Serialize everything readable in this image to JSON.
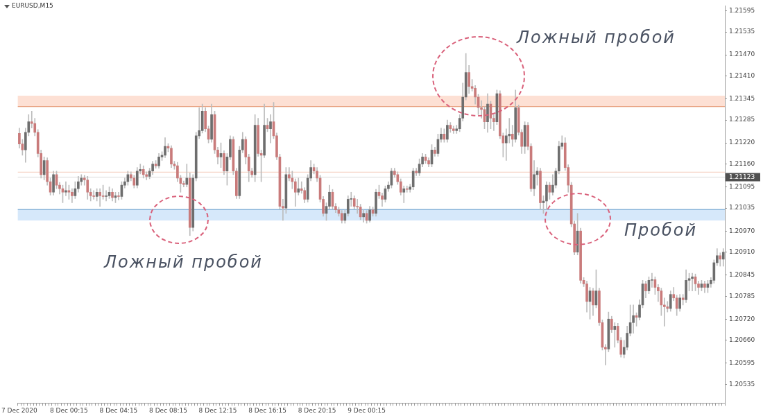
{
  "chart_data": {
    "type": "candlestick",
    "title": "EURUSD,M15",
    "categories": [
      "7 Dec 2020",
      null,
      null,
      null,
      null,
      null,
      null,
      null,
      null,
      null,
      null,
      null,
      null,
      null,
      null,
      null,
      "8 Dec 00:15",
      null,
      null,
      null,
      null,
      null,
      null,
      null,
      null,
      null,
      null,
      null,
      null,
      null,
      null,
      null,
      "8 Dec 04:15",
      null,
      null,
      null,
      null,
      null,
      null,
      null,
      null,
      null,
      null,
      null,
      null,
      null,
      null,
      null,
      "8 Dec 08:15",
      null,
      null,
      null,
      null,
      null,
      null,
      null,
      null,
      null,
      null,
      null,
      null,
      null,
      null,
      null,
      "8 Dec 12:15",
      null,
      null,
      null,
      null,
      null,
      null,
      null,
      null,
      null,
      null,
      null,
      null,
      null,
      null,
      null,
      "8 Dec 16:15",
      null,
      null,
      null,
      null,
      null,
      null,
      null,
      null,
      null,
      null,
      null,
      null,
      null,
      null,
      null,
      "8 Dec 20:15",
      null,
      null,
      null,
      null,
      null,
      null,
      null,
      null,
      null,
      null,
      null,
      null,
      null,
      null,
      null,
      "9 Dec 00:15",
      null,
      null,
      null,
      null,
      null,
      null,
      null,
      null,
      null,
      null,
      null,
      null,
      null,
      null,
      null,
      null,
      null,
      null,
      null,
      null,
      null,
      null,
      null,
      null,
      null,
      null,
      null,
      null,
      null,
      null,
      null,
      null,
      null,
      null,
      null,
      null,
      null,
      null,
      null,
      null,
      null,
      null,
      null,
      null,
      null,
      null,
      null,
      null,
      null,
      null,
      null,
      null,
      null,
      null,
      null,
      null,
      null,
      null,
      null,
      null,
      null,
      null,
      null,
      null,
      null,
      null,
      null,
      null,
      null,
      null,
      null,
      null,
      null,
      null,
      null,
      null,
      null,
      null,
      null,
      null,
      null,
      null,
      null,
      null,
      null,
      null,
      null,
      null,
      null,
      null,
      null,
      null,
      null,
      null,
      null,
      null,
      null,
      null,
      null,
      null,
      null,
      null,
      null,
      null,
      null,
      null,
      null,
      null,
      null,
      null,
      null,
      null,
      null,
      null,
      null
    ],
    "ohlc": [
      [
        1.21247,
        1.21262,
        1.21205,
        1.21217
      ],
      [
        1.21217,
        1.2123,
        1.21185,
        1.212
      ],
      [
        1.212,
        1.21262,
        1.21165,
        1.2125
      ],
      [
        1.2125,
        1.213,
        1.2124,
        1.2128
      ],
      [
        1.2128,
        1.2131,
        1.21262,
        1.21275
      ],
      [
        1.21275,
        1.2129,
        1.2124,
        1.2125
      ],
      [
        1.2125,
        1.21258,
        1.2118,
        1.2119
      ],
      [
        1.2119,
        1.212,
        1.2112,
        1.2113
      ],
      [
        1.2113,
        1.2118,
        1.21115,
        1.2117
      ],
      [
        1.2117,
        1.21178,
        1.211,
        1.2111
      ],
      [
        1.2111,
        1.2112,
        1.21072,
        1.2108
      ],
      [
        1.2108,
        1.2114,
        1.21072,
        1.2113
      ],
      [
        1.2113,
        1.2114,
        1.2109,
        1.211
      ],
      [
        1.211,
        1.21108,
        1.21075,
        1.2109
      ],
      [
        1.2109,
        1.211,
        1.2105,
        1.2108
      ],
      [
        1.2108,
        1.2111,
        1.2107,
        1.21085
      ],
      [
        1.21085,
        1.211,
        1.2106,
        1.2108
      ],
      [
        1.2108,
        1.2109,
        1.2105,
        1.2107
      ],
      [
        1.2107,
        1.2111,
        1.21062,
        1.2109
      ],
      [
        1.2109,
        1.21125,
        1.2108,
        1.2111
      ],
      [
        1.2111,
        1.2113,
        1.211,
        1.2112
      ],
      [
        1.2112,
        1.21128,
        1.211,
        1.21115
      ],
      [
        1.21115,
        1.21125,
        1.2106,
        1.2108
      ],
      [
        1.2108,
        1.2109,
        1.21055,
        1.2107
      ],
      [
        1.2107,
        1.21085,
        1.2106,
        1.21068
      ],
      [
        1.21068,
        1.2109,
        1.21055,
        1.2108
      ],
      [
        1.2108,
        1.2109,
        1.2104,
        1.2107
      ],
      [
        1.2107,
        1.211,
        1.2106,
        1.21068
      ],
      [
        1.21068,
        1.21085,
        1.21055,
        1.2107
      ],
      [
        1.2107,
        1.21095,
        1.21062,
        1.2108
      ],
      [
        1.2108,
        1.2109,
        1.21055,
        1.21065
      ],
      [
        1.21065,
        1.2108,
        1.2105,
        1.2107
      ],
      [
        1.2107,
        1.2108,
        1.21058,
        1.21068
      ],
      [
        1.21068,
        1.2111,
        1.2106,
        1.211
      ],
      [
        1.211,
        1.2112,
        1.21092,
        1.2111
      ],
      [
        1.2111,
        1.2114,
        1.211,
        1.2113
      ],
      [
        1.2113,
        1.21138,
        1.21112,
        1.2112
      ],
      [
        1.2112,
        1.21128,
        1.21092,
        1.211
      ],
      [
        1.211,
        1.2115,
        1.21092,
        1.2114
      ],
      [
        1.2114,
        1.2116,
        1.21132,
        1.21145
      ],
      [
        1.21145,
        1.21155,
        1.2112,
        1.2113
      ],
      [
        1.2113,
        1.21138,
        1.21115,
        1.21125
      ],
      [
        1.21125,
        1.21148,
        1.21118,
        1.2114
      ],
      [
        1.2114,
        1.21168,
        1.2113,
        1.2116
      ],
      [
        1.2116,
        1.2117,
        1.21148,
        1.21155
      ],
      [
        1.21155,
        1.2119,
        1.21148,
        1.2118
      ],
      [
        1.2118,
        1.21195,
        1.2117,
        1.21185
      ],
      [
        1.21185,
        1.21235,
        1.21178,
        1.2121
      ],
      [
        1.2121,
        1.21218,
        1.21195,
        1.21205
      ],
      [
        1.21205,
        1.21212,
        1.2115,
        1.2116
      ],
      [
        1.2116,
        1.21168,
        1.21145,
        1.21155
      ],
      [
        1.21155,
        1.21165,
        1.2111,
        1.2112
      ],
      [
        1.2112,
        1.21128,
        1.2108,
        1.21105
      ],
      [
        1.21105,
        1.21112,
        1.21095,
        1.21102
      ],
      [
        1.21102,
        1.2116,
        1.21095,
        1.2112
      ],
      [
        1.2112,
        1.21135,
        1.20957,
        1.2098
      ],
      [
        1.2098,
        1.2113,
        1.2097,
        1.2112
      ],
      [
        1.2112,
        1.2125,
        1.21112,
        1.2124
      ],
      [
        1.2124,
        1.2132,
        1.21232,
        1.21255
      ],
      [
        1.21255,
        1.2133,
        1.21248,
        1.2131
      ],
      [
        1.2131,
        1.2132,
        1.21252,
        1.2126
      ],
      [
        1.2126,
        1.21268,
        1.2122,
        1.2123
      ],
      [
        1.2123,
        1.2133,
        1.21222,
        1.213
      ],
      [
        1.213,
        1.2131,
        1.2119,
        1.212
      ],
      [
        1.212,
        1.21208,
        1.2116,
        1.2118
      ],
      [
        1.2118,
        1.2122,
        1.2115,
        1.2119
      ],
      [
        1.2119,
        1.21198,
        1.2113,
        1.2114
      ],
      [
        1.2114,
        1.2119,
        1.211,
        1.2118
      ],
      [
        1.2118,
        1.2124,
        1.21172,
        1.2123
      ],
      [
        1.2123,
        1.21238,
        1.2113,
        1.2114
      ],
      [
        1.2114,
        1.21148,
        1.21062,
        1.2107
      ],
      [
        1.2107,
        1.2121,
        1.21062,
        1.212
      ],
      [
        1.212,
        1.2125,
        1.21192,
        1.2123
      ],
      [
        1.2123,
        1.21238,
        1.2116,
        1.2118
      ],
      [
        1.2118,
        1.21188,
        1.2111,
        1.2114
      ],
      [
        1.2114,
        1.21148,
        1.21122,
        1.2113
      ],
      [
        1.2113,
        1.213,
        1.2111,
        1.2127
      ],
      [
        1.2127,
        1.2129,
        1.21182,
        1.2119
      ],
      [
        1.2119,
        1.212,
        1.2111,
        1.21185
      ],
      [
        1.21185,
        1.2133,
        1.21178,
        1.2127
      ],
      [
        1.2127,
        1.2129,
        1.21252,
        1.2126
      ],
      [
        1.2126,
        1.213,
        1.2122,
        1.2128
      ],
      [
        1.2128,
        1.21335,
        1.21232,
        1.2124
      ],
      [
        1.2124,
        1.21248,
        1.21172,
        1.2118
      ],
      [
        1.2118,
        1.21188,
        1.21032,
        1.2104
      ],
      [
        1.2104,
        1.2106,
        1.21,
        1.21035
      ],
      [
        1.21035,
        1.2115,
        1.2102,
        1.2113
      ],
      [
        1.2113,
        1.2115,
        1.21112,
        1.2112
      ],
      [
        1.2112,
        1.2114,
        1.2109,
        1.2111
      ],
      [
        1.2111,
        1.21118,
        1.2104,
        1.2108
      ],
      [
        1.2108,
        1.2112,
        1.21072,
        1.2109
      ],
      [
        1.2109,
        1.2111,
        1.21077,
        1.21085
      ],
      [
        1.21085,
        1.21093,
        1.2105,
        1.2106
      ],
      [
        1.2106,
        1.2113,
        1.21052,
        1.2112
      ],
      [
        1.2112,
        1.2117,
        1.21112,
        1.2115
      ],
      [
        1.2115,
        1.2116,
        1.21132,
        1.2114
      ],
      [
        1.2114,
        1.2115,
        1.2111,
        1.2112
      ],
      [
        1.2112,
        1.21128,
        1.21052,
        1.2106
      ],
      [
        1.2106,
        1.21068,
        1.21012,
        1.2102
      ],
      [
        1.2102,
        1.2105,
        1.21,
        1.2104
      ],
      [
        1.2104,
        1.211,
        1.21032,
        1.2108
      ],
      [
        1.2108,
        1.21088,
        1.21032,
        1.2104
      ],
      [
        1.2104,
        1.21048,
        1.21022,
        1.2103
      ],
      [
        1.2103,
        1.21038,
        1.21012,
        1.2102
      ],
      [
        1.2102,
        1.21028,
        1.20992,
        1.21
      ],
      [
        1.21,
        1.2103,
        1.20992,
        1.2102
      ],
      [
        1.2102,
        1.2107,
        1.21012,
        1.2106
      ],
      [
        1.2106,
        1.2108,
        1.2104,
        1.21062
      ],
      [
        1.21062,
        1.2107,
        1.21032,
        1.2104
      ],
      [
        1.2104,
        1.2106,
        1.2102,
        1.21038
      ],
      [
        1.21038,
        1.21046,
        1.21002,
        1.2101
      ],
      [
        1.2101,
        1.2103,
        1.20995,
        1.2102
      ],
      [
        1.2102,
        1.21028,
        1.20992,
        1.21
      ],
      [
        1.21,
        1.2104,
        1.20995,
        1.2103
      ],
      [
        1.2103,
        1.21038,
        1.21012,
        1.2102
      ],
      [
        1.2102,
        1.21088,
        1.21012,
        1.2108
      ],
      [
        1.2108,
        1.211,
        1.21062,
        1.2107
      ],
      [
        1.2107,
        1.21078,
        1.2104,
        1.2106
      ],
      [
        1.2106,
        1.21098,
        1.21052,
        1.2109
      ],
      [
        1.2109,
        1.2111,
        1.21082,
        1.211
      ],
      [
        1.211,
        1.21148,
        1.21092,
        1.2114
      ],
      [
        1.2114,
        1.21148,
        1.21122,
        1.2113
      ],
      [
        1.2113,
        1.21138,
        1.21102,
        1.2111
      ],
      [
        1.2111,
        1.21118,
        1.21072,
        1.2108
      ],
      [
        1.2108,
        1.21098,
        1.2105,
        1.2109
      ],
      [
        1.2109,
        1.21098,
        1.2108,
        1.21088
      ],
      [
        1.21088,
        1.21103,
        1.2108,
        1.21095
      ],
      [
        1.21095,
        1.21148,
        1.21087,
        1.2114
      ],
      [
        1.2114,
        1.21148,
        1.21127,
        1.21135
      ],
      [
        1.21135,
        1.21175,
        1.21127,
        1.2116
      ],
      [
        1.2116,
        1.2119,
        1.21152,
        1.2118
      ],
      [
        1.2118,
        1.21188,
        1.21162,
        1.2117
      ],
      [
        1.2117,
        1.21178,
        1.21152,
        1.2116
      ],
      [
        1.2116,
        1.21215,
        1.21152,
        1.212
      ],
      [
        1.212,
        1.21208,
        1.21182,
        1.2119
      ],
      [
        1.2119,
        1.21245,
        1.21182,
        1.2123
      ],
      [
        1.2123,
        1.21262,
        1.21222,
        1.21245
      ],
      [
        1.21245,
        1.2126,
        1.21222,
        1.2123
      ],
      [
        1.2123,
        1.21285,
        1.21222,
        1.2127
      ],
      [
        1.2127,
        1.21278,
        1.2125,
        1.2126
      ],
      [
        1.2126,
        1.21268,
        1.21247,
        1.21255
      ],
      [
        1.21255,
        1.2127,
        1.21247,
        1.2126
      ],
      [
        1.2126,
        1.213,
        1.21252,
        1.2129
      ],
      [
        1.2129,
        1.2139,
        1.21282,
        1.2135
      ],
      [
        1.2135,
        1.21474,
        1.21342,
        1.2142
      ],
      [
        1.2142,
        1.2144,
        1.2136,
        1.2138
      ],
      [
        1.2138,
        1.214,
        1.21367,
        1.21375
      ],
      [
        1.21375,
        1.21383,
        1.2133,
        1.2135
      ],
      [
        1.2135,
        1.21358,
        1.213,
        1.2132
      ],
      [
        1.2132,
        1.2134,
        1.2129,
        1.21315
      ],
      [
        1.21315,
        1.21323,
        1.2126,
        1.2128
      ],
      [
        1.2128,
        1.2136,
        1.2125,
        1.2133
      ],
      [
        1.2133,
        1.21338,
        1.2126,
        1.2129
      ],
      [
        1.2129,
        1.213,
        1.21255,
        1.2128
      ],
      [
        1.2128,
        1.2137,
        1.21272,
        1.2136
      ],
      [
        1.2136,
        1.21368,
        1.21232,
        1.2124
      ],
      [
        1.2124,
        1.21248,
        1.2118,
        1.2122
      ],
      [
        1.2122,
        1.2126,
        1.2117,
        1.2124
      ],
      [
        1.2124,
        1.2129,
        1.2122,
        1.21245
      ],
      [
        1.21245,
        1.2127,
        1.2121,
        1.2123
      ],
      [
        1.2123,
        1.2137,
        1.21222,
        1.2132
      ],
      [
        1.2132,
        1.21328,
        1.21242,
        1.2125
      ],
      [
        1.2125,
        1.21258,
        1.2119,
        1.2121
      ],
      [
        1.2121,
        1.2128,
        1.2119,
        1.2127
      ],
      [
        1.2127,
        1.21278,
        1.212,
        1.2121
      ],
      [
        1.2121,
        1.21218,
        1.21082,
        1.2109
      ],
      [
        1.2109,
        1.2117,
        1.2107,
        1.2113
      ],
      [
        1.2113,
        1.2115,
        1.211,
        1.2114
      ],
      [
        1.2114,
        1.21148,
        1.2103,
        1.2105
      ],
      [
        1.2105,
        1.2107,
        1.2102,
        1.21055
      ],
      [
        1.21055,
        1.2111,
        1.2103,
        1.211
      ],
      [
        1.211,
        1.21108,
        1.2106,
        1.2108
      ],
      [
        1.2108,
        1.2113,
        1.21072,
        1.211
      ],
      [
        1.211,
        1.21148,
        1.21092,
        1.2114
      ],
      [
        1.2114,
        1.21225,
        1.21132,
        1.2121
      ],
      [
        1.2121,
        1.2124,
        1.21202,
        1.2122
      ],
      [
        1.2122,
        1.21235,
        1.21142,
        1.2115
      ],
      [
        1.2115,
        1.21158,
        1.2108,
        1.211
      ],
      [
        1.211,
        1.21108,
        1.20982,
        1.2099
      ],
      [
        1.2099,
        1.20998,
        1.20902,
        1.2091
      ],
      [
        1.2091,
        1.2102,
        1.20902,
        1.2097
      ],
      [
        1.2097,
        1.20978,
        1.20822,
        1.2083
      ],
      [
        1.2083,
        1.20838,
        1.20812,
        1.2082
      ],
      [
        1.2082,
        1.20828,
        1.2074,
        1.2077
      ],
      [
        1.2077,
        1.2081,
        1.2072,
        1.208
      ],
      [
        1.208,
        1.20808,
        1.2073,
        1.2076
      ],
      [
        1.2076,
        1.2086,
        1.20752,
        1.208
      ],
      [
        1.208,
        1.20808,
        1.20702,
        1.2071
      ],
      [
        1.2071,
        1.20718,
        1.20632,
        1.2064
      ],
      [
        1.2064,
        1.20648,
        1.2059,
        1.20635
      ],
      [
        1.20635,
        1.2074,
        1.20627,
        1.2072
      ],
      [
        1.2072,
        1.20728,
        1.20682,
        1.2069
      ],
      [
        1.2069,
        1.2071,
        1.2064,
        1.207
      ],
      [
        1.207,
        1.20708,
        1.20652,
        1.2066
      ],
      [
        1.2066,
        1.20668,
        1.20612,
        1.2062
      ],
      [
        1.2062,
        1.2066,
        1.2061,
        1.2064
      ],
      [
        1.2064,
        1.207,
        1.20632,
        1.2068
      ],
      [
        1.2068,
        1.2076,
        1.20672,
        1.2071
      ],
      [
        1.2071,
        1.2076,
        1.2068,
        1.2073
      ],
      [
        1.2073,
        1.20738,
        1.207,
        1.20725
      ],
      [
        1.20725,
        1.20775,
        1.20717,
        1.2076
      ],
      [
        1.2076,
        1.2083,
        1.20752,
        1.2082
      ],
      [
        1.2082,
        1.20828,
        1.2078,
        1.208
      ],
      [
        1.208,
        1.2084,
        1.20792,
        1.2083
      ],
      [
        1.2083,
        1.2085,
        1.2081,
        1.20832
      ],
      [
        1.20832,
        1.2084,
        1.2079,
        1.2081
      ],
      [
        1.2081,
        1.20818,
        1.2077,
        1.208
      ],
      [
        1.208,
        1.20808,
        1.2073,
        1.2076
      ],
      [
        1.2076,
        1.2078,
        1.207,
        1.20755
      ],
      [
        1.20755,
        1.2077,
        1.2074,
        1.2075
      ],
      [
        1.2075,
        1.208,
        1.20742,
        1.2079
      ],
      [
        1.2079,
        1.2081,
        1.20772,
        1.2078
      ],
      [
        1.2078,
        1.20788,
        1.2073,
        1.2075
      ],
      [
        1.2075,
        1.2079,
        1.20742,
        1.2078
      ],
      [
        1.2078,
        1.2079,
        1.2076,
        1.20775
      ],
      [
        1.20775,
        1.2086,
        1.20767,
        1.2083
      ],
      [
        1.2083,
        1.2085,
        1.208,
        1.20835
      ],
      [
        1.20835,
        1.2085,
        1.208,
        1.2084
      ],
      [
        1.2084,
        1.20848,
        1.208,
        1.2082
      ],
      [
        1.2082,
        1.20828,
        1.2079,
        1.2081
      ],
      [
        1.2081,
        1.2083,
        1.208,
        1.2082
      ],
      [
        1.2082,
        1.20828,
        1.20795,
        1.2081
      ],
      [
        1.2081,
        1.2083,
        1.20795,
        1.2082
      ],
      [
        1.2082,
        1.20838,
        1.2081,
        1.2083
      ],
      [
        1.2083,
        1.20888,
        1.20822,
        1.2088
      ],
      [
        1.2088,
        1.2092,
        1.20872,
        1.209
      ],
      [
        1.209,
        1.20908,
        1.2087,
        1.2089
      ],
      [
        1.2089,
        1.2092,
        1.2087,
        1.2091
      ]
    ],
    "ylim": [
      1.20482,
      1.21609
    ],
    "yticks": [
      {
        "value": 1.20535,
        "label": "1.20535"
      },
      {
        "value": 1.20595,
        "label": "1.20595"
      },
      {
        "value": 1.2066,
        "label": "1.20660"
      },
      {
        "value": 1.2072,
        "label": "1.20720"
      },
      {
        "value": 1.20785,
        "label": "1.20785"
      },
      {
        "value": 1.20845,
        "label": "1.20845"
      },
      {
        "value": 1.2091,
        "label": "1.20910"
      },
      {
        "value": 1.2097,
        "label": "1.20970"
      },
      {
        "value": 1.21035,
        "label": "1.21035"
      },
      {
        "value": 1.21095,
        "label": "1.21095"
      },
      {
        "value": 1.2116,
        "label": "1.21160"
      },
      {
        "value": 1.2122,
        "label": "1.21220"
      },
      {
        "value": 1.21285,
        "label": "1.21285"
      },
      {
        "value": 1.21345,
        "label": "1.21345"
      },
      {
        "value": 1.2141,
        "label": "1.21410"
      },
      {
        "value": 1.2147,
        "label": "1.21470"
      },
      {
        "value": 1.21535,
        "label": "1.21535"
      },
      {
        "value": 1.21595,
        "label": "1.21595"
      }
    ],
    "bands": [
      {
        "axis": "y",
        "from": 1.21323,
        "to": 1.21354,
        "color": "#fde0d4"
      },
      {
        "axis": "y",
        "from": 1.21,
        "to": 1.21031,
        "color": "#d6e8fa"
      }
    ],
    "ref_lines": [
      {
        "axis": "y",
        "value": 1.21323,
        "color": "#e08a60"
      },
      {
        "axis": "y",
        "value": 1.21031,
        "color": "#5a96c8"
      },
      {
        "axis": "y",
        "value": 1.21137,
        "color": "#f4cbbb"
      },
      {
        "axis": "y",
        "value": 1.21123,
        "label": "1.21123",
        "color": "#dcdcdc"
      }
    ],
    "annotations": [
      "Ложный пробой",
      "Ложный пробой",
      "Пробой"
    ],
    "grid": false,
    "legend": false
  }
}
